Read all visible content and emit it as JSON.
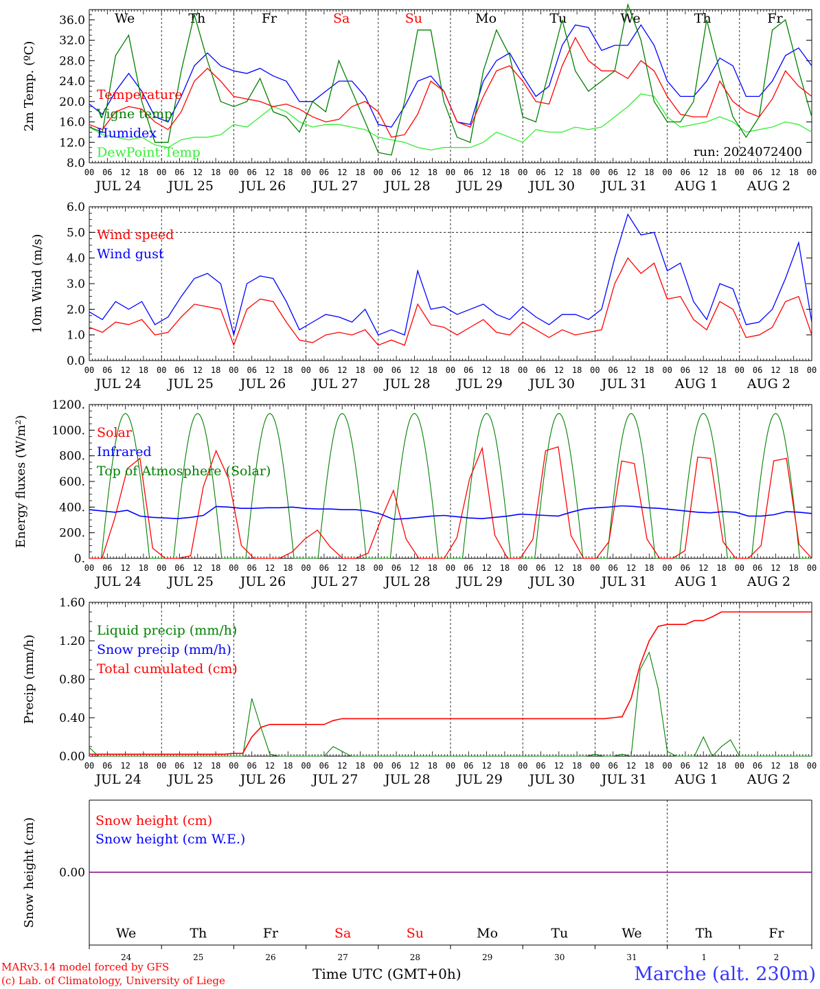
{
  "footer": {
    "model_line": "MARv3.14 model forced by GFS",
    "credit_line": "(c) Lab. of Climatology, University of Liege",
    "time_axis_label": "Time UTC (GMT+0h)",
    "location": "Marche (alt. 230m)"
  },
  "colors": {
    "red": "#ff0000",
    "green": "#008000",
    "blue": "#0000ff",
    "lime": "#33ee33",
    "purple": "#800080"
  },
  "common": {
    "hour_ticks": [
      "00",
      "06",
      "12",
      "18"
    ],
    "date_labels": [
      "JUL 24",
      "JUL 25",
      "JUL 26",
      "JUL 27",
      "JUL 28",
      "JUL 29",
      "JUL 30",
      "JUL 31",
      "AUG  1",
      "AUG  2"
    ],
    "weekdays": [
      {
        "label": "We",
        "color": "#000000"
      },
      {
        "label": "Th",
        "color": "#000000"
      },
      {
        "label": "Fr",
        "color": "#000000"
      },
      {
        "label": "Sa",
        "color": "#ff0000"
      },
      {
        "label": "Su",
        "color": "#ff0000"
      },
      {
        "label": "Mo",
        "color": "#000000"
      },
      {
        "label": "Tu",
        "color": "#000000"
      },
      {
        "label": "We",
        "color": "#000000"
      },
      {
        "label": "Th",
        "color": "#000000"
      },
      {
        "label": "Fr",
        "color": "#000000"
      }
    ],
    "day_numbers": [
      "24",
      "25",
      "26",
      "27",
      "28",
      "29",
      "30",
      "31",
      "1",
      "2"
    ]
  },
  "chart_data": [
    {
      "type": "line",
      "ylabel": "2m Temp. (ºC)",
      "ylim": [
        8,
        38
      ],
      "yticks": [
        "8.0",
        "12.0",
        "16.0",
        "20.0",
        "24.0",
        "28.0",
        "32.0",
        "36.0"
      ],
      "ytick_values": [
        8,
        12,
        16,
        20,
        24,
        28,
        32,
        36
      ],
      "run_label": "run: 2024072400",
      "x_hours_from": 0,
      "x_hours_to": 240,
      "x_step_hours": 6,
      "series": [
        {
          "name": "Temperature",
          "color": "#ff0000",
          "values": [
            15.5,
            14.5,
            18,
            19,
            18.5,
            16,
            14.5,
            18,
            24,
            26.5,
            24,
            21,
            20.5,
            20,
            19,
            19.5,
            18.5,
            17,
            16,
            16.5,
            19,
            20,
            18,
            13,
            13.5,
            17.5,
            24,
            22,
            16,
            15,
            21,
            26,
            27,
            24,
            20,
            19.5,
            27,
            32.5,
            28,
            26,
            26,
            24.5,
            28,
            26,
            21,
            17.5,
            17,
            17,
            24,
            20,
            18,
            17,
            20.5,
            26,
            23,
            21
          ]
        },
        {
          "name": "Vigne temp",
          "color": "#008000",
          "values": [
            15,
            14,
            29,
            33,
            20,
            12,
            12,
            26,
            37,
            28,
            20,
            19,
            20,
            24.5,
            18,
            17,
            14,
            20,
            18,
            28,
            22,
            16,
            10,
            9.5,
            20,
            34,
            34,
            20,
            13,
            12,
            26,
            34,
            29,
            17,
            16,
            26,
            36,
            26,
            22,
            24,
            26,
            39,
            32,
            20,
            16,
            16,
            20,
            36,
            26,
            17,
            13,
            17,
            34,
            36,
            26,
            17
          ]
        },
        {
          "name": "Humidex",
          "color": "#0000ff",
          "values": [
            19.5,
            17.5,
            22,
            25.5,
            22,
            17,
            16,
            21,
            27,
            29.5,
            27,
            26,
            25.5,
            26.5,
            25,
            24,
            20,
            20,
            22,
            24,
            24,
            21,
            15.5,
            15,
            19,
            24,
            25,
            22,
            16,
            15.5,
            24,
            28,
            29.5,
            25,
            21,
            23,
            31,
            35,
            34.5,
            30,
            31,
            31,
            35,
            31,
            24,
            21,
            21,
            24,
            28.5,
            27,
            21,
            21,
            24,
            29,
            30.5,
            27
          ]
        },
        {
          "name": "DewPoint Temp",
          "color": "#33ee33",
          "values": [
            15,
            13.5,
            13,
            12.5,
            13,
            11.5,
            11,
            12.5,
            13,
            13,
            13.5,
            15.5,
            15,
            17,
            19,
            18,
            16,
            15,
            15.5,
            15.5,
            15,
            14.5,
            13,
            12.5,
            12,
            11,
            10.5,
            11,
            11,
            11,
            12,
            14,
            13,
            12,
            14.5,
            14,
            14,
            15,
            14.5,
            15,
            17,
            19,
            21.5,
            21,
            17,
            15,
            15.5,
            16,
            17,
            16,
            14,
            14.5,
            15,
            16,
            15.5,
            14
          ]
        }
      ]
    },
    {
      "type": "line",
      "ylabel": "10m Wind (m/s)",
      "ylim": [
        0,
        6
      ],
      "yticks": [
        "0.0",
        "1.0",
        "2.0",
        "3.0",
        "4.0",
        "5.0",
        "6.0"
      ],
      "ytick_values": [
        0,
        1,
        2,
        3,
        4,
        5,
        6
      ],
      "x_hours_from": 0,
      "x_hours_to": 240,
      "x_step_hours": 6,
      "series": [
        {
          "name": "Wind speed",
          "color": "#ff0000",
          "values": [
            1.3,
            1.1,
            1.5,
            1.4,
            1.6,
            1.0,
            1.1,
            1.7,
            2.2,
            2.1,
            2.0,
            0.6,
            2.0,
            2.4,
            2.3,
            1.5,
            0.8,
            0.7,
            1.0,
            1.1,
            1.0,
            1.2,
            0.6,
            0.8,
            0.6,
            2.2,
            1.4,
            1.3,
            1.0,
            1.3,
            1.6,
            1.1,
            1.0,
            1.5,
            1.2,
            0.9,
            1.2,
            1.0,
            1.1,
            1.2,
            3.0,
            4.0,
            3.4,
            3.8,
            2.4,
            2.5,
            1.6,
            1.2,
            2.3,
            2.0,
            0.9,
            1.0,
            1.3,
            2.3,
            2.5,
            1.0
          ]
        },
        {
          "name": "Wind gust",
          "color": "#0000ff",
          "values": [
            1.9,
            1.6,
            2.3,
            2.0,
            2.3,
            1.4,
            1.7,
            2.5,
            3.2,
            3.4,
            3.0,
            1.0,
            3.0,
            3.3,
            3.2,
            2.3,
            1.2,
            1.5,
            1.8,
            1.7,
            1.5,
            2.0,
            1.0,
            1.2,
            1.0,
            3.5,
            2.0,
            2.1,
            1.8,
            2.0,
            2.2,
            1.8,
            1.6,
            2.1,
            1.7,
            1.4,
            1.8,
            1.8,
            1.6,
            2.0,
            4.0,
            5.7,
            4.9,
            5.0,
            3.5,
            3.8,
            2.3,
            1.6,
            3.0,
            2.8,
            1.4,
            1.5,
            2.0,
            3.2,
            4.6,
            1.5
          ]
        }
      ]
    },
    {
      "type": "line",
      "ylabel": "Energy fluxes (W/m²)",
      "ylim": [
        0,
        1200
      ],
      "yticks": [
        "0.",
        "200.",
        "400.",
        "600.",
        "800.",
        "1000.",
        "1200."
      ],
      "ytick_values": [
        0,
        200,
        400,
        600,
        800,
        1000,
        1200
      ],
      "x_hours_from": 0,
      "x_hours_to": 240,
      "x_step_hours": 6,
      "series": [
        {
          "name": "Solar",
          "color": "#ff0000",
          "values": [
            0,
            0,
            310,
            700,
            780,
            80,
            0,
            0,
            20,
            560,
            840,
            620,
            100,
            0,
            0,
            0,
            50,
            150,
            220,
            90,
            0,
            0,
            40,
            300,
            530,
            150,
            0,
            0,
            0,
            160,
            620,
            860,
            180,
            0,
            0,
            150,
            840,
            870,
            180,
            0,
            0,
            130,
            760,
            740,
            150,
            0,
            0,
            60,
            790,
            780,
            130,
            0,
            0,
            100,
            760,
            780,
            110,
            0
          ]
        },
        {
          "name": "Infrared",
          "color": "#0000ff",
          "values": [
            380,
            370,
            360,
            375,
            330,
            320,
            315,
            310,
            320,
            335,
            405,
            400,
            390,
            390,
            395,
            395,
            400,
            390,
            385,
            385,
            380,
            380,
            370,
            345,
            305,
            310,
            320,
            330,
            335,
            325,
            315,
            310,
            320,
            330,
            345,
            340,
            335,
            330,
            360,
            385,
            395,
            400,
            410,
            405,
            395,
            390,
            380,
            370,
            360,
            355,
            365,
            360,
            330,
            330,
            340,
            365,
            360,
            350
          ]
        },
        {
          "name": "Top of Atmosphere (Solar)",
          "color": "#008000",
          "values_note": "diurnal",
          "peak": 1130
        }
      ]
    },
    {
      "type": "line",
      "ylabel": "Precip (mm/h)",
      "ylim": [
        0,
        1.6
      ],
      "yticks": [
        "0.00",
        "0.40",
        "0.80",
        "1.20",
        "1.60"
      ],
      "ytick_values": [
        0,
        0.4,
        0.8,
        1.2,
        1.6
      ],
      "x_hours_from": 0,
      "x_hours_to": 240,
      "x_step_hours": 6,
      "series": [
        {
          "name": "Liquid precip (mm/h)",
          "color": "#008000",
          "values": [
            0.09,
            0,
            0,
            0,
            0,
            0,
            0,
            0,
            0,
            0,
            0,
            0,
            0,
            0,
            0,
            0,
            0,
            0,
            0.6,
            0.3,
            0.02,
            0,
            0,
            0,
            0,
            0,
            0,
            0.1,
            0.05,
            0,
            0,
            0,
            0,
            0,
            0,
            0,
            0,
            0,
            0,
            0,
            0,
            0,
            0,
            0,
            0,
            0,
            0,
            0,
            0,
            0,
            0,
            0,
            0,
            0,
            0,
            0,
            0.02,
            0,
            0,
            0.02,
            0,
            0.9,
            1.08,
            0.7,
            0.05,
            0,
            0,
            0,
            0.2,
            0,
            0.1,
            0.17,
            0,
            0,
            0,
            0,
            0,
            0,
            0,
            0,
            0
          ]
        },
        {
          "name": "Snow precip (mm/h)",
          "color": "#0000ff",
          "values": []
        },
        {
          "name": "Total cumulated (cm)",
          "color": "#ff0000",
          "values": [
            0.02,
            0.02,
            0.02,
            0.02,
            0.02,
            0.02,
            0.02,
            0.02,
            0.02,
            0.02,
            0.02,
            0.02,
            0.02,
            0.02,
            0.02,
            0.02,
            0.03,
            0.03,
            0.2,
            0.3,
            0.33,
            0.33,
            0.33,
            0.33,
            0.33,
            0.33,
            0.33,
            0.37,
            0.39,
            0.39,
            0.39,
            0.39,
            0.39,
            0.39,
            0.39,
            0.39,
            0.39,
            0.39,
            0.39,
            0.39,
            0.39,
            0.39,
            0.39,
            0.39,
            0.39,
            0.39,
            0.39,
            0.39,
            0.39,
            0.39,
            0.39,
            0.39,
            0.39,
            0.39,
            0.39,
            0.39,
            0.39,
            0.39,
            0.4,
            0.41,
            0.6,
            0.95,
            1.2,
            1.35,
            1.37,
            1.37,
            1.37,
            1.41,
            1.41,
            1.45,
            1.5,
            1.5,
            1.5,
            1.5,
            1.5,
            1.5,
            1.5,
            1.5,
            1.5,
            1.5,
            1.5
          ]
        }
      ]
    },
    {
      "type": "line",
      "ylabel": "Snow height (cm)",
      "yticks": [
        "0.00"
      ],
      "ytick_values": [
        0
      ],
      "x_hours_from": 0,
      "x_hours_to": 240,
      "series": [
        {
          "name": "Snow height (cm)",
          "color": "#ff0000",
          "values": [
            0,
            0
          ]
        },
        {
          "name": "Snow height (cm W.E.)",
          "color": "#0000ff",
          "values": [
            0,
            0
          ]
        }
      ]
    }
  ]
}
